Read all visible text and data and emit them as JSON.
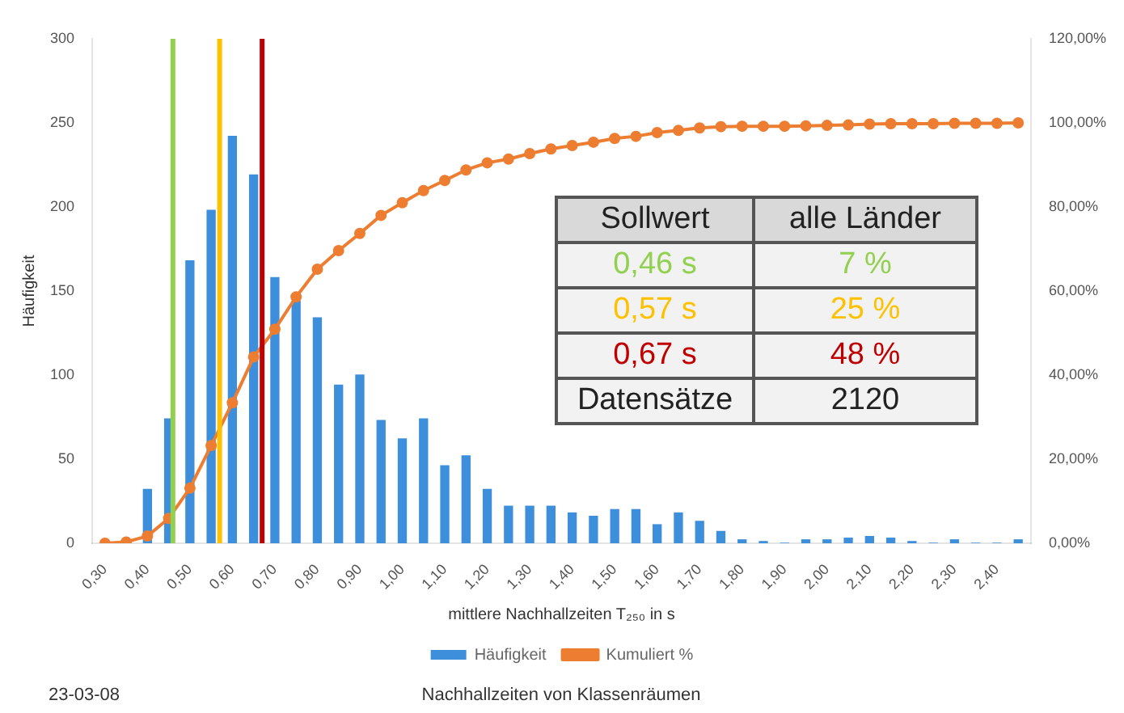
{
  "chart_data": {
    "type": "bar",
    "xlabel": "mittlere Nachhallzeiten T₂₅₀ in s",
    "ylabel": "Häufigkeit",
    "x": [
      0.3,
      0.35,
      0.4,
      0.45,
      0.5,
      0.55,
      0.6,
      0.65,
      0.7,
      0.75,
      0.8,
      0.85,
      0.9,
      0.95,
      1.0,
      1.05,
      1.1,
      1.15,
      1.2,
      1.25,
      1.3,
      1.35,
      1.4,
      1.45,
      1.5,
      1.55,
      1.6,
      1.65,
      1.7,
      1.75,
      1.8,
      1.85,
      1.9,
      1.95,
      2.0,
      2.05,
      2.1,
      2.15,
      2.2,
      2.25,
      2.3,
      2.35,
      2.4,
      2.45
    ],
    "series": [
      {
        "name": "Häufigkeit",
        "color": "#3d8fdc",
        "values": [
          0,
          0,
          32,
          74,
          168,
          198,
          242,
          219,
          158,
          144,
          134,
          94,
          100,
          73,
          62,
          74,
          46,
          52,
          32,
          22,
          22,
          22,
          18,
          16,
          20,
          20,
          11,
          18,
          13,
          7,
          2,
          1,
          0,
          2,
          2,
          3,
          4,
          3,
          1,
          0,
          2,
          0,
          0,
          2
        ]
      },
      {
        "name": "Kumuliert %",
        "type": "line",
        "axis": "y2",
        "color": "#ed7d31",
        "marker": "circle",
        "line_style": "solid",
        "values": [
          0,
          0.3,
          1.7,
          5.9,
          13.1,
          23.2,
          33.4,
          44.3,
          50.9,
          58.6,
          65.2,
          69.6,
          73.7,
          78,
          81,
          83.9,
          86.3,
          88.8,
          90.5,
          91.4,
          92.7,
          93.8,
          94.6,
          95.4,
          96.3,
          96.8,
          97.7,
          98.2,
          98.8,
          99.1,
          99.2,
          99.2,
          99.2,
          99.3,
          99.4,
          99.5,
          99.7,
          99.8,
          99.8,
          99.8,
          99.9,
          99.9,
          99.9,
          100
        ]
      }
    ],
    "xlim": [
      0.27,
      2.48
    ],
    "xticks": [
      {
        "value": 0.3,
        "label": "0,30"
      },
      {
        "value": 0.4,
        "label": "0,40"
      },
      {
        "value": 0.5,
        "label": "0,50"
      },
      {
        "value": 0.6,
        "label": "0,60"
      },
      {
        "value": 0.7,
        "label": "0,70"
      },
      {
        "value": 0.8,
        "label": "0,80"
      },
      {
        "value": 0.9,
        "label": "0,90"
      },
      {
        "value": 1.0,
        "label": "1,00"
      },
      {
        "value": 1.1,
        "label": "1,10"
      },
      {
        "value": 1.2,
        "label": "1,20"
      },
      {
        "value": 1.3,
        "label": "1,30"
      },
      {
        "value": 1.4,
        "label": "1,40"
      },
      {
        "value": 1.5,
        "label": "1,50"
      },
      {
        "value": 1.6,
        "label": "1,60"
      },
      {
        "value": 1.7,
        "label": "1,70"
      },
      {
        "value": 1.8,
        "label": "1,80"
      },
      {
        "value": 1.9,
        "label": "1,90"
      },
      {
        "value": 2.0,
        "label": "2,00"
      },
      {
        "value": 2.1,
        "label": "2,10"
      },
      {
        "value": 2.2,
        "label": "2,20"
      },
      {
        "value": 2.3,
        "label": "2,30"
      },
      {
        "value": 2.4,
        "label": "2,40"
      }
    ],
    "ylim": [
      0,
      300
    ],
    "yticks": [
      0,
      50,
      100,
      150,
      200,
      250,
      300
    ],
    "y2lim": [
      0,
      120
    ],
    "y2ticks": [
      {
        "value": 0,
        "label": "0,00%"
      },
      {
        "value": 20,
        "label": "20,00%"
      },
      {
        "value": 40,
        "label": "40,00%"
      },
      {
        "value": 60,
        "label": "60,00%"
      },
      {
        "value": 80,
        "label": "80,00%"
      },
      {
        "value": 100,
        "label": "100,00%"
      },
      {
        "value": 120,
        "label": "120,00%"
      }
    ],
    "ref_lines": [
      {
        "axis": "x",
        "value": 0.46,
        "color": "#92d050"
      },
      {
        "axis": "x",
        "value": 0.57,
        "color": "#ffc000"
      },
      {
        "axis": "x",
        "value": 0.67,
        "color": "#c00000"
      }
    ],
    "legend": "bottom",
    "grid": false,
    "annotations": [
      "23-03-08",
      "Nachhallzeiten von Klassenräumen",
      "Sollwert",
      "alle Länder",
      "0,46 s",
      "7 %",
      "0,57 s",
      "25 %",
      "0,67 s",
      "48 %",
      "Datensätze",
      "2120"
    ]
  }
}
